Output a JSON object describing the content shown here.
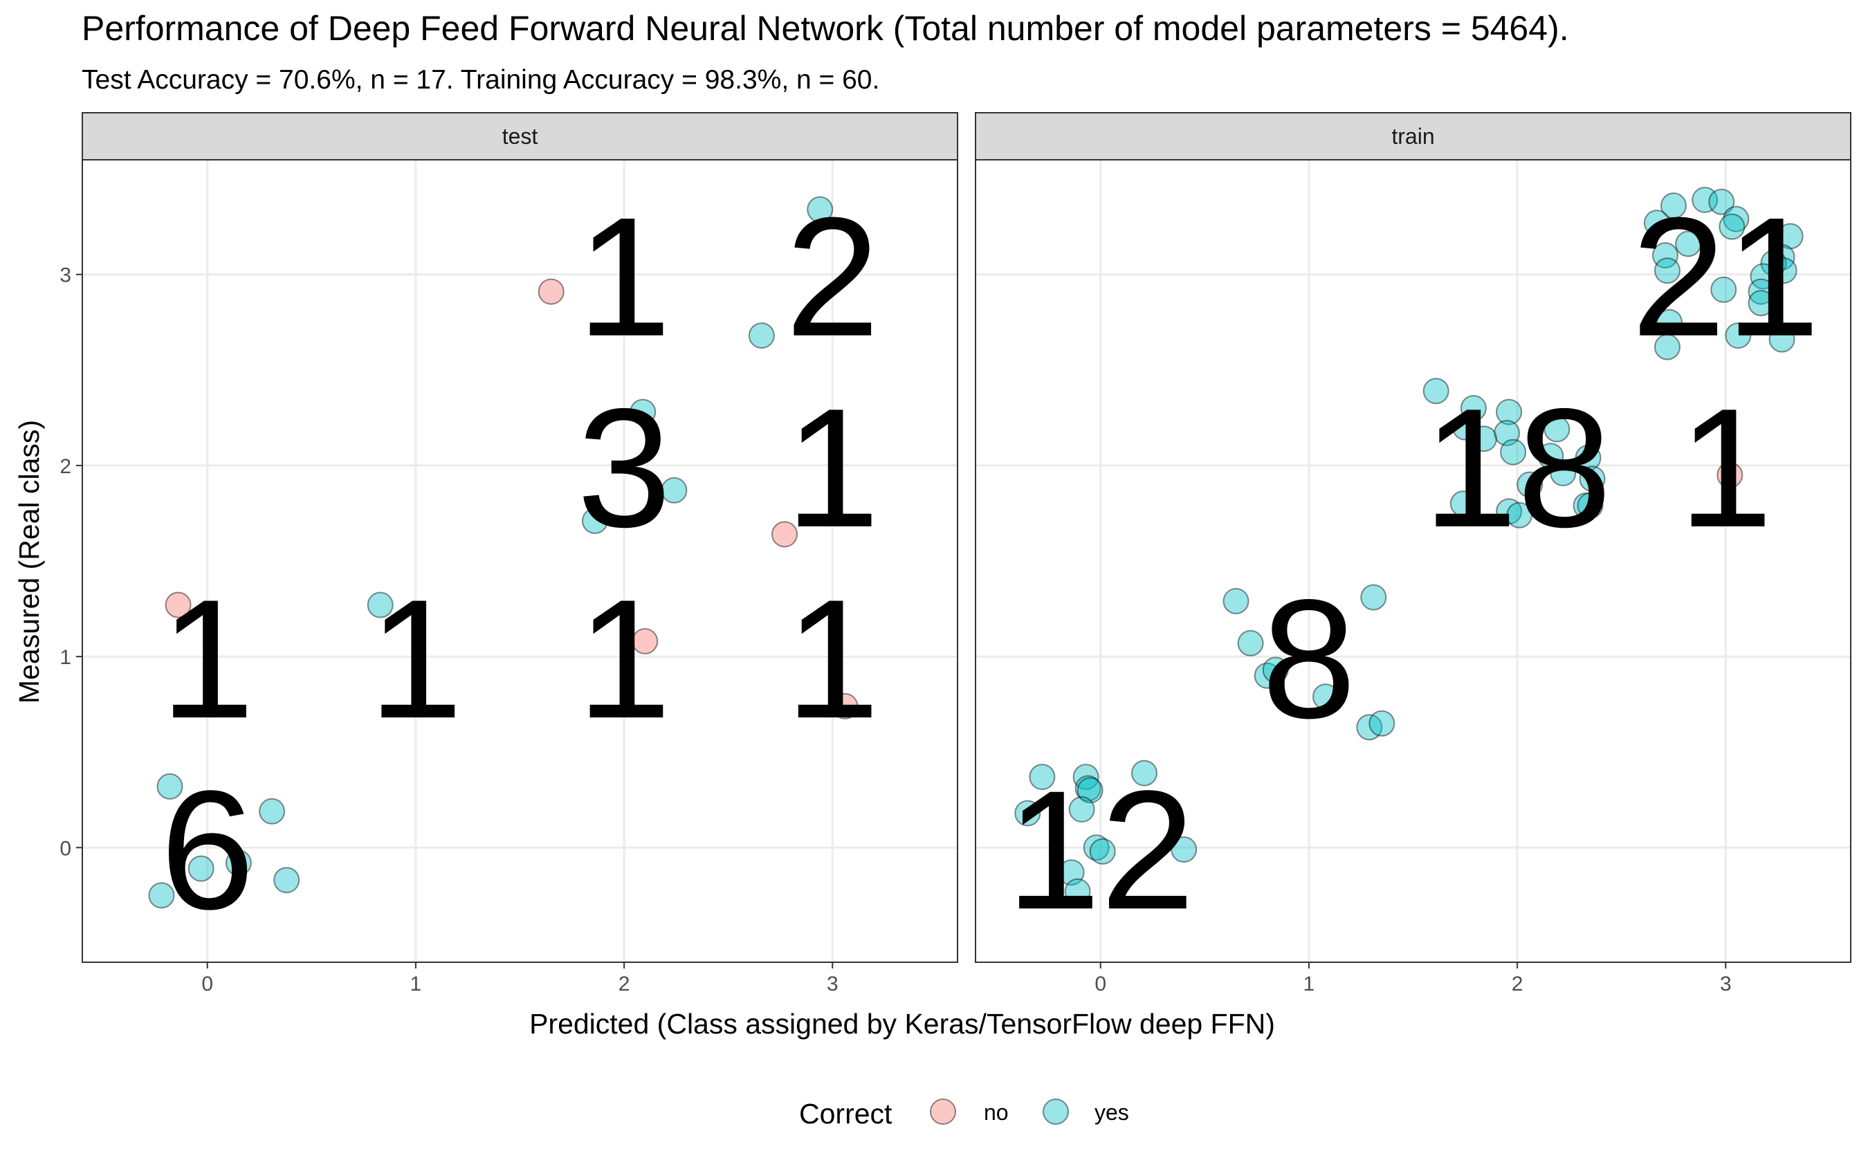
{
  "title": "Performance of Deep Feed Forward Neural Network (Total number of model parameters = 5464).",
  "subtitle": "Test Accuracy = 70.6%, n = 17. Training Accuracy = 98.3%, n = 60.",
  "colors": {
    "no": "#F8766D",
    "yes": "#00BFC4",
    "strip_bg": "#D9D9D9",
    "grid": "#EBEBEB",
    "border": "#333333"
  },
  "chart_data": {
    "type": "scatter",
    "facets": [
      "test",
      "train"
    ],
    "xlabel": "Predicted (Class assigned by Keras/TensorFlow deep FFN)",
    "ylabel": "Measured (Real class)",
    "xlim": [
      -0.6,
      3.6
    ],
    "ylim": [
      -0.6,
      3.6
    ],
    "xticks": [
      0,
      1,
      2,
      3
    ],
    "yticks": [
      0,
      1,
      2,
      3
    ],
    "grid": true,
    "legend": {
      "title": "Correct",
      "position": "bottom",
      "entries": [
        "no",
        "yes"
      ]
    },
    "panels": [
      {
        "name": "test",
        "counts": [
          {
            "x": 0,
            "y": 0,
            "n": "6"
          },
          {
            "x": 0,
            "y": 1,
            "n": "1"
          },
          {
            "x": 1,
            "y": 1,
            "n": "1"
          },
          {
            "x": 2,
            "y": 1,
            "n": "1"
          },
          {
            "x": 3,
            "y": 1,
            "n": "1"
          },
          {
            "x": 2,
            "y": 2,
            "n": "3"
          },
          {
            "x": 3,
            "y": 2,
            "n": "1"
          },
          {
            "x": 2,
            "y": 3,
            "n": "1"
          },
          {
            "x": 3,
            "y": 3,
            "n": "2"
          }
        ],
        "points": [
          {
            "x": -0.14,
            "y": 1.27,
            "correct": "no"
          },
          {
            "x": 1.65,
            "y": 2.91,
            "correct": "no"
          },
          {
            "x": 2.77,
            "y": 1.64,
            "correct": "no"
          },
          {
            "x": 2.1,
            "y": 1.08,
            "correct": "no"
          },
          {
            "x": 3.06,
            "y": 0.74,
            "correct": "no"
          },
          {
            "x": -0.18,
            "y": 0.32,
            "correct": "yes"
          },
          {
            "x": 0.31,
            "y": 0.19,
            "correct": "yes"
          },
          {
            "x": 0.15,
            "y": -0.08,
            "correct": "yes"
          },
          {
            "x": -0.03,
            "y": -0.11,
            "correct": "yes"
          },
          {
            "x": 0.38,
            "y": -0.17,
            "correct": "yes"
          },
          {
            "x": -0.22,
            "y": -0.25,
            "correct": "yes"
          },
          {
            "x": 0.83,
            "y": 1.27,
            "correct": "yes"
          },
          {
            "x": 2.09,
            "y": 2.28,
            "correct": "yes"
          },
          {
            "x": 2.24,
            "y": 1.87,
            "correct": "yes"
          },
          {
            "x": 1.86,
            "y": 1.71,
            "correct": "yes"
          },
          {
            "x": 2.66,
            "y": 2.68,
            "correct": "yes"
          },
          {
            "x": 2.94,
            "y": 3.34,
            "correct": "yes"
          }
        ]
      },
      {
        "name": "train",
        "counts": [
          {
            "x": 0,
            "y": 0,
            "n": "12"
          },
          {
            "x": 1,
            "y": 1,
            "n": "8"
          },
          {
            "x": 2,
            "y": 2,
            "n": "18"
          },
          {
            "x": 3,
            "y": 2,
            "n": "1"
          },
          {
            "x": 3,
            "y": 3,
            "n": "21"
          }
        ],
        "points": [
          {
            "x": 3.02,
            "y": 1.95,
            "correct": "no"
          },
          {
            "x": -0.28,
            "y": 0.37,
            "correct": "yes"
          },
          {
            "x": -0.07,
            "y": 0.37,
            "correct": "yes"
          },
          {
            "x": 0.21,
            "y": 0.39,
            "correct": "yes"
          },
          {
            "x": -0.06,
            "y": 0.31,
            "correct": "yes"
          },
          {
            "x": -0.05,
            "y": 0.3,
            "correct": "yes"
          },
          {
            "x": -0.35,
            "y": 0.18,
            "correct": "yes"
          },
          {
            "x": -0.09,
            "y": 0.2,
            "correct": "yes"
          },
          {
            "x": -0.02,
            "y": 0.0,
            "correct": "yes"
          },
          {
            "x": 0.01,
            "y": -0.02,
            "correct": "yes"
          },
          {
            "x": 0.4,
            "y": -0.01,
            "correct": "yes"
          },
          {
            "x": -0.14,
            "y": -0.13,
            "correct": "yes"
          },
          {
            "x": -0.11,
            "y": -0.23,
            "correct": "yes"
          },
          {
            "x": 0.65,
            "y": 1.29,
            "correct": "yes"
          },
          {
            "x": 1.31,
            "y": 1.31,
            "correct": "yes"
          },
          {
            "x": 0.72,
            "y": 1.07,
            "correct": "yes"
          },
          {
            "x": 0.8,
            "y": 0.9,
            "correct": "yes"
          },
          {
            "x": 0.84,
            "y": 0.93,
            "correct": "yes"
          },
          {
            "x": 1.08,
            "y": 0.79,
            "correct": "yes"
          },
          {
            "x": 1.29,
            "y": 0.63,
            "correct": "yes"
          },
          {
            "x": 1.35,
            "y": 0.65,
            "correct": "yes"
          },
          {
            "x": 1.61,
            "y": 2.39,
            "correct": "yes"
          },
          {
            "x": 1.79,
            "y": 2.3,
            "correct": "yes"
          },
          {
            "x": 1.96,
            "y": 2.28,
            "correct": "yes"
          },
          {
            "x": 1.75,
            "y": 2.2,
            "correct": "yes"
          },
          {
            "x": 1.95,
            "y": 2.17,
            "correct": "yes"
          },
          {
            "x": 2.19,
            "y": 2.19,
            "correct": "yes"
          },
          {
            "x": 1.84,
            "y": 2.14,
            "correct": "yes"
          },
          {
            "x": 1.98,
            "y": 2.07,
            "correct": "yes"
          },
          {
            "x": 2.34,
            "y": 2.04,
            "correct": "yes"
          },
          {
            "x": 2.22,
            "y": 1.96,
            "correct": "yes"
          },
          {
            "x": 2.36,
            "y": 1.93,
            "correct": "yes"
          },
          {
            "x": 1.74,
            "y": 1.8,
            "correct": "yes"
          },
          {
            "x": 1.96,
            "y": 1.76,
            "correct": "yes"
          },
          {
            "x": 2.01,
            "y": 1.74,
            "correct": "yes"
          },
          {
            "x": 2.33,
            "y": 1.79,
            "correct": "yes"
          },
          {
            "x": 2.35,
            "y": 1.79,
            "correct": "yes"
          },
          {
            "x": 2.06,
            "y": 1.9,
            "correct": "yes"
          },
          {
            "x": 2.16,
            "y": 2.05,
            "correct": "yes"
          },
          {
            "x": 2.9,
            "y": 3.39,
            "correct": "yes"
          },
          {
            "x": 2.98,
            "y": 3.38,
            "correct": "yes"
          },
          {
            "x": 2.75,
            "y": 3.36,
            "correct": "yes"
          },
          {
            "x": 3.05,
            "y": 3.29,
            "correct": "yes"
          },
          {
            "x": 2.67,
            "y": 3.27,
            "correct": "yes"
          },
          {
            "x": 3.03,
            "y": 3.25,
            "correct": "yes"
          },
          {
            "x": 3.31,
            "y": 3.2,
            "correct": "yes"
          },
          {
            "x": 2.82,
            "y": 3.16,
            "correct": "yes"
          },
          {
            "x": 2.71,
            "y": 3.1,
            "correct": "yes"
          },
          {
            "x": 3.27,
            "y": 3.09,
            "correct": "yes"
          },
          {
            "x": 3.23,
            "y": 3.06,
            "correct": "yes"
          },
          {
            "x": 2.72,
            "y": 3.02,
            "correct": "yes"
          },
          {
            "x": 3.28,
            "y": 3.02,
            "correct": "yes"
          },
          {
            "x": 3.18,
            "y": 2.99,
            "correct": "yes"
          },
          {
            "x": 2.99,
            "y": 2.92,
            "correct": "yes"
          },
          {
            "x": 3.17,
            "y": 2.91,
            "correct": "yes"
          },
          {
            "x": 3.17,
            "y": 2.85,
            "correct": "yes"
          },
          {
            "x": 2.73,
            "y": 2.75,
            "correct": "yes"
          },
          {
            "x": 3.06,
            "y": 2.68,
            "correct": "yes"
          },
          {
            "x": 3.27,
            "y": 2.66,
            "correct": "yes"
          },
          {
            "x": 2.72,
            "y": 2.62,
            "correct": "yes"
          }
        ]
      }
    ]
  }
}
